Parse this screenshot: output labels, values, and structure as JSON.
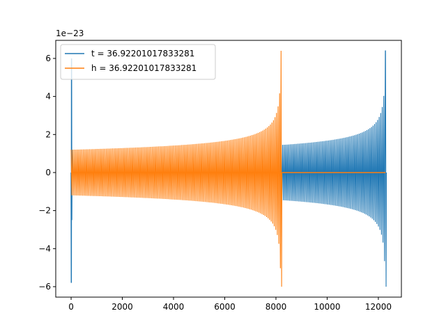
{
  "chart_data": {
    "type": "line",
    "title": "",
    "xlabel": "",
    "ylabel": "",
    "offset_text": "1e−23",
    "y_scale_factor": 1e-23,
    "xlim": [
      -600,
      12900
    ],
    "ylim": [
      -6.55,
      6.95
    ],
    "xticks": [
      0,
      2000,
      4000,
      6000,
      8000,
      10000,
      12000
    ],
    "xtick_labels": [
      "0",
      "2000",
      "4000",
      "6000",
      "8000",
      "10000",
      "12000"
    ],
    "yticks": [
      -6,
      -4,
      -2,
      0,
      2,
      4,
      6
    ],
    "ytick_labels": [
      "−6",
      "−4",
      "−2",
      "0",
      "2",
      "4",
      "6"
    ],
    "grid": false,
    "legend": "top-left",
    "series": [
      {
        "name": "t = 36.92201017833281",
        "color": "#1f77b4",
        "initial_spike": {
          "x": 0,
          "min": -5.8,
          "max": 6.0
        },
        "zero_until": 120,
        "chirp": {
          "start": 8200,
          "end": 12280,
          "amplitude_start": 1.45,
          "amplitude_peak": 6.4,
          "amplitude_trough": -6.0
        }
      },
      {
        "name": "h = 36.92201017833281",
        "color": "#ff7f0e",
        "chirp": {
          "start": 0,
          "end": 8200,
          "amplitude_start": 1.2,
          "amplitude_peak": 6.4,
          "amplitude_trough": -6.0
        },
        "zero_after": 8240,
        "flat_end": 12280
      }
    ]
  }
}
